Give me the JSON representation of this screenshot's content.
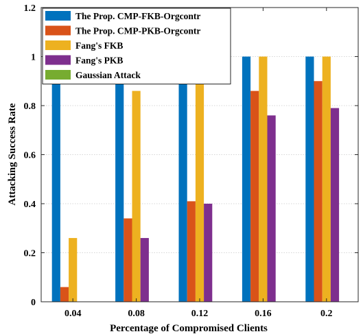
{
  "chart_data": {
    "type": "bar",
    "categories": [
      "0.04",
      "0.08",
      "0.12",
      "0.16",
      "0.2"
    ],
    "xlabel": "Percentage of Compromised Clients",
    "ylabel": "Attacking Success Rate",
    "ylim": [
      0,
      1.2
    ],
    "yticks": [
      "0",
      "0.2",
      "0.4",
      "0.6",
      "0.8",
      "1",
      "1.2"
    ],
    "grid": true,
    "legend_position": "top-left",
    "series": [
      {
        "name": "The Prop. CMP-FKB-Orgcontr",
        "color": "#0072BD",
        "values": [
          1.0,
          1.0,
          1.0,
          1.0,
          1.0
        ]
      },
      {
        "name": "The Prop. CMP-PKB-Orgcontr",
        "color": "#D95319",
        "values": [
          0.06,
          0.34,
          0.41,
          0.86,
          0.9
        ]
      },
      {
        "name": "Fang's FKB",
        "color": "#EDB120",
        "values": [
          0.26,
          0.86,
          1.0,
          1.0,
          1.0
        ]
      },
      {
        "name": "Fang's PKB",
        "color": "#7E2F8E",
        "values": [
          0.0,
          0.26,
          0.4,
          0.76,
          0.79
        ]
      },
      {
        "name": "Gaussian Attack",
        "color": "#77AC30",
        "values": [
          0.0,
          0.0,
          0.0,
          0.0,
          0.0
        ]
      }
    ]
  }
}
